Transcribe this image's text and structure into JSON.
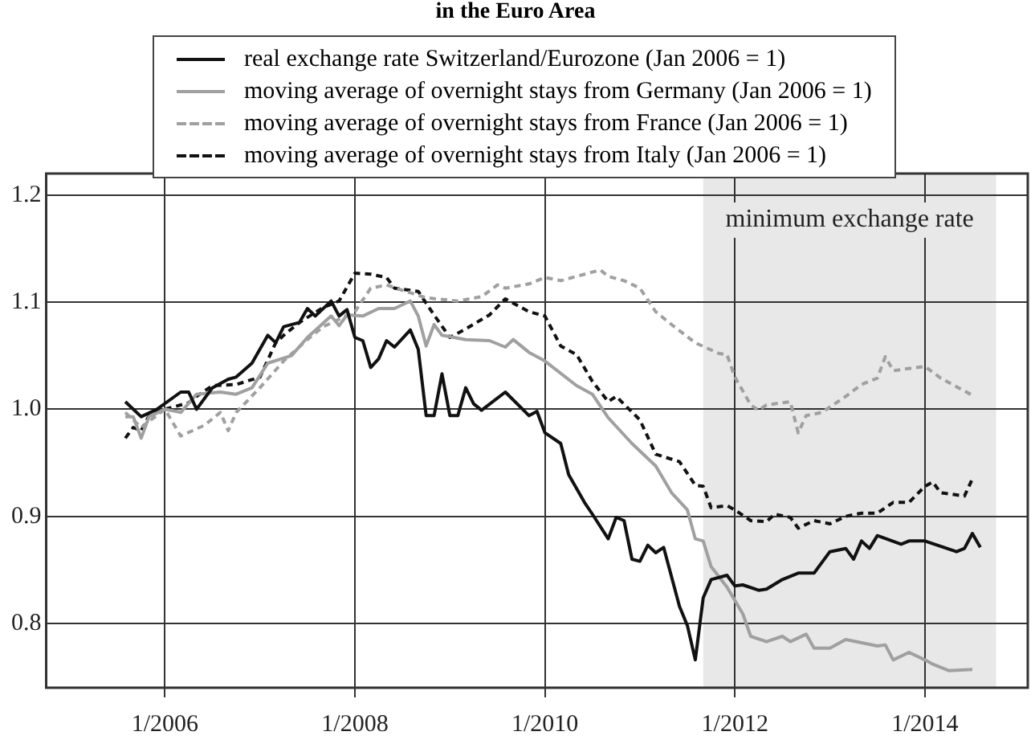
{
  "chart_data": {
    "type": "line",
    "title": "in the Euro Area",
    "xlim": [
      "2004-10",
      "2015-02"
    ],
    "xticks": [
      {
        "value": "2006-01",
        "label": "1/2006"
      },
      {
        "value": "2008-01",
        "label": "1/2008"
      },
      {
        "value": "2010-01",
        "label": "1/2010"
      },
      {
        "value": "2012-01",
        "label": "1/2012"
      },
      {
        "value": "2014-01",
        "label": "1/2014"
      }
    ],
    "ylim": [
      0.74,
      1.22
    ],
    "yticks": [
      0.8,
      0.9,
      {
        "value": 1,
        "label": "1.0"
      },
      1.1,
      1.2
    ],
    "grid": true,
    "legend": "top",
    "marker": "none",
    "bands": [
      {
        "axis": "x",
        "from": "2011-09",
        "to": "2014-10",
        "label": "minimum exchange rate",
        "color": "#e8e8e8"
      }
    ],
    "series": [
      {
        "name": "real exchange rate Switzerland/Eurozone (Jan 2006 = 1)",
        "color": "#111111",
        "line_style": "solid",
        "x": [
          "2005-08",
          "2005-10",
          "2005-12",
          "2006-03",
          "2006-04",
          "2006-05",
          "2006-07",
          "2006-09",
          "2006-10",
          "2006-12",
          "2007-02",
          "2007-03",
          "2007-04",
          "2007-06",
          "2007-07",
          "2007-08",
          "2007-10",
          "2007-11",
          "2007-12",
          "2008-01",
          "2008-02",
          "2008-03",
          "2008-04",
          "2008-05",
          "2008-06",
          "2008-08",
          "2008-09",
          "2008-10",
          "2008-11",
          "2008-12",
          "2009-01",
          "2009-02",
          "2009-03",
          "2009-04",
          "2009-05",
          "2009-08",
          "2009-11",
          "2009-12",
          "2010-01",
          "2010-03",
          "2010-04",
          "2010-06",
          "2010-07",
          "2010-09",
          "2010-10",
          "2010-11",
          "2010-12",
          "2011-01",
          "2011-02",
          "2011-03",
          "2011-04",
          "2011-06",
          "2011-07",
          "2011-08",
          "2011-09",
          "2011-10",
          "2011-12",
          "2012-01",
          "2012-02",
          "2012-04",
          "2012-05",
          "2012-07",
          "2012-09",
          "2012-11",
          "2013-01",
          "2013-03",
          "2013-04",
          "2013-05",
          "2013-06",
          "2013-07",
          "2013-10",
          "2013-11",
          "2014-01",
          "2014-05",
          "2014-06",
          "2014-07",
          "2014-08"
        ],
        "values": [
          1.007,
          0.993,
          1.0,
          1.016,
          1.016,
          1.0,
          1.02,
          1.028,
          1.03,
          1.043,
          1.069,
          1.062,
          1.077,
          1.081,
          1.094,
          1.087,
          1.101,
          1.087,
          1.093,
          1.067,
          1.064,
          1.039,
          1.047,
          1.064,
          1.058,
          1.074,
          1.056,
          0.994,
          0.994,
          1.033,
          0.994,
          0.994,
          1.02,
          1.005,
          0.999,
          1.016,
          0.994,
          0.998,
          0.978,
          0.968,
          0.939,
          0.913,
          0.902,
          0.879,
          0.899,
          0.896,
          0.86,
          0.858,
          0.873,
          0.866,
          0.871,
          0.816,
          0.798,
          0.766,
          0.824,
          0.841,
          0.845,
          0.835,
          0.836,
          0.831,
          0.832,
          0.841,
          0.847,
          0.847,
          0.867,
          0.87,
          0.86,
          0.877,
          0.87,
          0.882,
          0.874,
          0.877,
          0.877,
          0.867,
          0.87,
          0.884,
          0.871
        ]
      },
      {
        "name": "moving average of overnight stays from Germany (Jan 2006 = 1)",
        "color": "#a0a0a0",
        "line_style": "solid",
        "x": [
          "2005-08",
          "2005-09",
          "2005-10",
          "2005-11",
          "2006-01",
          "2006-03",
          "2006-05",
          "2006-08",
          "2006-10",
          "2006-12",
          "2007-02",
          "2007-05",
          "2007-07",
          "2007-10",
          "2007-11",
          "2007-12",
          "2008-02",
          "2008-04",
          "2008-06",
          "2008-08",
          "2008-09",
          "2008-10",
          "2008-11",
          "2008-12",
          "2009-03",
          "2009-06",
          "2009-08",
          "2009-09",
          "2009-11",
          "2010-01",
          "2010-05",
          "2010-07",
          "2010-09",
          "2010-12",
          "2011-03",
          "2011-05",
          "2011-07",
          "2011-08",
          "2011-09",
          "2011-10",
          "2011-12",
          "2012-02",
          "2012-03",
          "2012-05",
          "2012-07",
          "2012-08",
          "2012-10",
          "2012-11",
          "2013-01",
          "2013-03",
          "2013-07",
          "2013-08",
          "2013-09",
          "2013-11",
          "2014-01",
          "2014-02",
          "2014-04",
          "2014-07"
        ],
        "values": [
          0.993,
          0.993,
          0.973,
          0.993,
          1.0,
          0.997,
          1.014,
          1.016,
          1.014,
          1.02,
          1.043,
          1.05,
          1.067,
          1.087,
          1.078,
          1.088,
          1.087,
          1.094,
          1.094,
          1.101,
          1.087,
          1.059,
          1.079,
          1.069,
          1.065,
          1.064,
          1.058,
          1.065,
          1.053,
          1.045,
          1.022,
          1.014,
          0.992,
          0.968,
          0.947,
          0.922,
          0.906,
          0.879,
          0.877,
          0.853,
          0.834,
          0.809,
          0.788,
          0.783,
          0.788,
          0.783,
          0.79,
          0.777,
          0.777,
          0.785,
          0.779,
          0.78,
          0.766,
          0.773,
          0.766,
          0.762,
          0.756,
          0.757
        ]
      },
      {
        "name": "moving average of overnight stays from France (Jan 2006 = 1)",
        "color": "#a0a0a0",
        "line_style": "dashed",
        "x": [
          "2005-08",
          "2005-09",
          "2005-10",
          "2006-01",
          "2006-03",
          "2006-06",
          "2006-08",
          "2006-09",
          "2006-10",
          "2007-01",
          "2007-04",
          "2007-07",
          "2007-09",
          "2007-11",
          "2008-01",
          "2008-03",
          "2008-05",
          "2008-07",
          "2008-10",
          "2009-02",
          "2009-05",
          "2009-07",
          "2009-08",
          "2009-11",
          "2010-01",
          "2010-03",
          "2010-08",
          "2010-09",
          "2010-11",
          "2011-01",
          "2011-03",
          "2011-05",
          "2011-08",
          "2011-11",
          "2011-12",
          "2012-01",
          "2012-03",
          "2012-04",
          "2012-05",
          "2012-08",
          "2012-09",
          "2012-10",
          "2012-12",
          "2013-03",
          "2013-05",
          "2013-07",
          "2013-08",
          "2013-09",
          "2014-01",
          "2014-03",
          "2014-07"
        ],
        "values": [
          0.997,
          0.99,
          0.983,
          1.0,
          0.975,
          0.985,
          0.997,
          0.98,
          0.997,
          1.02,
          1.045,
          1.065,
          1.077,
          1.084,
          1.091,
          1.113,
          1.116,
          1.111,
          1.104,
          1.101,
          1.105,
          1.116,
          1.113,
          1.117,
          1.123,
          1.12,
          1.13,
          1.124,
          1.12,
          1.113,
          1.091,
          1.079,
          1.062,
          1.052,
          1.051,
          1.03,
          1.004,
          0.999,
          1.004,
          1.007,
          0.978,
          0.994,
          0.997,
          1.012,
          1.023,
          1.029,
          1.049,
          1.036,
          1.04,
          1.029,
          1.013
        ]
      },
      {
        "name": "moving average of overnight stays from Italy (Jan 2006 = 1)",
        "color": "#111111",
        "line_style": "dashed",
        "x": [
          "2005-08",
          "2005-09",
          "2005-10",
          "2005-11",
          "2006-01",
          "2006-04",
          "2006-05",
          "2006-07",
          "2006-10",
          "2007-01",
          "2007-03",
          "2007-04",
          "2007-06",
          "2007-09",
          "2007-11",
          "2008-01",
          "2008-03",
          "2008-05",
          "2008-06",
          "2008-09",
          "2008-11",
          "2009-01",
          "2009-03",
          "2009-06",
          "2009-08",
          "2009-11",
          "2010-01",
          "2010-03",
          "2010-05",
          "2010-07",
          "2010-09",
          "2010-10",
          "2011-01",
          "2011-03",
          "2011-06",
          "2011-08",
          "2011-09",
          "2011-10",
          "2011-12",
          "2012-01",
          "2012-03",
          "2012-05",
          "2012-06",
          "2012-08",
          "2012-09",
          "2012-11",
          "2013-01",
          "2013-03",
          "2013-05",
          "2013-07",
          "2013-09",
          "2013-11",
          "2014-01",
          "2014-02",
          "2014-03",
          "2014-06",
          "2014-07"
        ],
        "values": [
          0.973,
          0.983,
          0.98,
          0.994,
          1.0,
          1.006,
          1.012,
          1.022,
          1.023,
          1.03,
          1.062,
          1.069,
          1.081,
          1.095,
          1.101,
          1.127,
          1.126,
          1.123,
          1.113,
          1.11,
          1.088,
          1.067,
          1.075,
          1.088,
          1.103,
          1.091,
          1.087,
          1.059,
          1.051,
          1.026,
          1.007,
          1.012,
          0.99,
          0.958,
          0.951,
          0.929,
          0.928,
          0.908,
          0.91,
          0.906,
          0.896,
          0.895,
          0.902,
          0.899,
          0.889,
          0.896,
          0.893,
          0.9,
          0.903,
          0.903,
          0.913,
          0.913,
          0.928,
          0.932,
          0.922,
          0.919,
          0.935
        ]
      }
    ]
  }
}
